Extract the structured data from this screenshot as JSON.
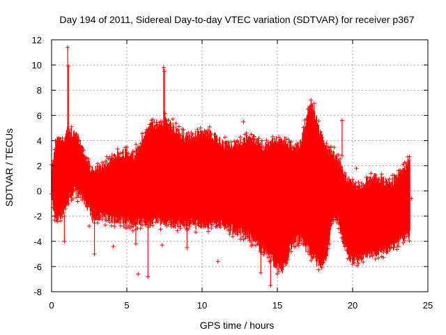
{
  "chart_data": {
    "type": "scatter",
    "title": "Day 194 of 2011, Sidereal Day-to-day VTEC variation (SDTVAR) for receiver p367",
    "xlabel": "GPS time / hours",
    "ylabel": "SDTVAR / TECUs",
    "xlim": [
      0,
      25
    ],
    "ylim": [
      -8,
      12
    ],
    "xticks": [
      0,
      5,
      10,
      15,
      20,
      25
    ],
    "yticks": [
      -8,
      -6,
      -4,
      -2,
      0,
      2,
      4,
      6,
      8,
      10,
      12
    ],
    "grid": true,
    "point_style": "plus",
    "color": "#ff0000",
    "envelope": {
      "hours": [
        0.0,
        0.3,
        0.5,
        0.8,
        1.0,
        1.3,
        1.5,
        1.8,
        2.0,
        2.3,
        2.5,
        2.8,
        3.0,
        3.5,
        4.0,
        4.5,
        5.0,
        5.5,
        6.0,
        6.5,
        7.0,
        7.5,
        8.0,
        8.5,
        9.0,
        9.5,
        10.0,
        10.5,
        11.0,
        11.5,
        12.0,
        12.5,
        13.0,
        13.5,
        14.0,
        14.5,
        15.0,
        15.3,
        15.6,
        16.0,
        16.5,
        17.0,
        17.3,
        17.6,
        18.0,
        18.3,
        18.6,
        19.0,
        19.5,
        20.0,
        20.5,
        21.0,
        21.5,
        22.0,
        22.5,
        23.0,
        23.5,
        23.8
      ],
      "upper": [
        2.0,
        4.5,
        4.8,
        4.3,
        5.2,
        5.0,
        4.8,
        4.6,
        4.0,
        3.0,
        2.5,
        1.8,
        2.2,
        2.5,
        3.0,
        3.4,
        3.5,
        3.2,
        4.5,
        5.5,
        5.8,
        6.0,
        5.5,
        5.0,
        4.6,
        4.8,
        4.9,
        5.0,
        4.5,
        4.0,
        4.0,
        4.2,
        4.5,
        4.5,
        4.0,
        4.2,
        4.5,
        4.5,
        4.3,
        4.0,
        3.8,
        6.5,
        7.5,
        6.0,
        4.5,
        3.5,
        3.5,
        3.0,
        1.5,
        1.0,
        0.7,
        1.2,
        1.5,
        1.2,
        1.0,
        1.5,
        2.5,
        3.0
      ],
      "lower": [
        -1.0,
        -2.8,
        -2.5,
        -2.0,
        -1.5,
        -0.7,
        -0.5,
        -0.6,
        -0.8,
        -1.5,
        -1.7,
        -2.8,
        -2.4,
        -2.5,
        -2.6,
        -2.7,
        -2.8,
        -3.0,
        -2.9,
        -3.0,
        -2.7,
        -2.9,
        -3.0,
        -3.0,
        -3.0,
        -3.1,
        -3.0,
        -3.1,
        -3.0,
        -3.1,
        -3.5,
        -3.6,
        -4.0,
        -4.5,
        -5.0,
        -5.5,
        -6.5,
        -6.8,
        -6.0,
        -4.5,
        -4.2,
        -5.0,
        -5.5,
        -6.0,
        -6.2,
        -5.5,
        -3.0,
        -2.5,
        -5.0,
        -6.0,
        -5.8,
        -5.5,
        -5.2,
        -5.3,
        -5.0,
        -4.5,
        -4.0,
        -3.9
      ]
    },
    "spikes": [
      {
        "hour": 1.07,
        "top": 11.4,
        "bottom": 2.0
      },
      {
        "hour": 1.12,
        "top": 9.9,
        "bottom": 3.0
      },
      {
        "hour": 7.45,
        "top": 9.8,
        "bottom": 5.0
      },
      {
        "hour": 7.5,
        "top": 9.5,
        "bottom": 5.5
      },
      {
        "hour": 2.85,
        "top": -1.0,
        "bottom": -5.0
      },
      {
        "hour": 6.4,
        "top": -2.5,
        "bottom": -6.8
      },
      {
        "hour": 5.6,
        "top": -2.0,
        "bottom": -4.2
      },
      {
        "hour": 13.9,
        "top": -4.2,
        "bottom": -6.5
      },
      {
        "hour": 14.55,
        "top": -5.5,
        "bottom": -7.5
      },
      {
        "hour": 19.3,
        "top": 5.6,
        "bottom": 2.8
      },
      {
        "hour": 0.85,
        "top": -2.0,
        "bottom": -4.0
      },
      {
        "hour": 9.0,
        "top": -3.0,
        "bottom": -4.5
      }
    ],
    "outliers": [
      {
        "hour": 4.1,
        "value": -4.4
      },
      {
        "hour": 5.75,
        "value": -6.6
      },
      {
        "hour": 11.05,
        "value": -5.6
      },
      {
        "hour": 12.75,
        "value": 5.5
      },
      {
        "hour": 20.25,
        "value": 1.8
      },
      {
        "hour": 2.5,
        "value": -2.8
      },
      {
        "hour": 7.35,
        "value": -4.3
      },
      {
        "hour": 23.9,
        "value": -0.6
      }
    ]
  }
}
